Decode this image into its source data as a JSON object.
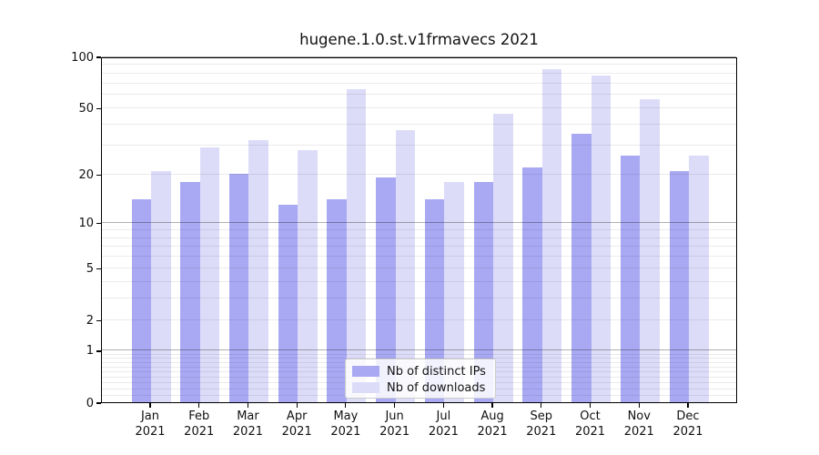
{
  "title": "hugene.1.0.st.v1frmavecs 2021",
  "chart_data": {
    "type": "bar",
    "title": "hugene.1.0.st.v1frmavecs 2021",
    "scale": "log1p",
    "grid": true,
    "legend_position": "bottom-center",
    "year": "2021",
    "categories": [
      "Jan",
      "Feb",
      "Mar",
      "Apr",
      "May",
      "Jun",
      "Jul",
      "Aug",
      "Sep",
      "Oct",
      "Nov",
      "Dec"
    ],
    "series": [
      {
        "name": "Nb of distinct IPs",
        "color": "#a9a9f3",
        "values": [
          14,
          18,
          20,
          13,
          14,
          19,
          14,
          18,
          22,
          35,
          26,
          21
        ]
      },
      {
        "name": "Nb of downloads",
        "color": "#dcdcf8",
        "values": [
          21,
          29,
          32,
          28,
          64,
          37,
          18,
          46,
          84,
          77,
          56,
          26
        ]
      }
    ],
    "yticks": [
      0,
      1,
      2,
      5,
      10,
      20,
      50,
      100
    ],
    "ylim": [
      0,
      100
    ]
  },
  "colors": {
    "major_grid": "#b0b0b0",
    "minor_grid": "#ebebeb",
    "spine": "#000000",
    "text": "#111111"
  }
}
